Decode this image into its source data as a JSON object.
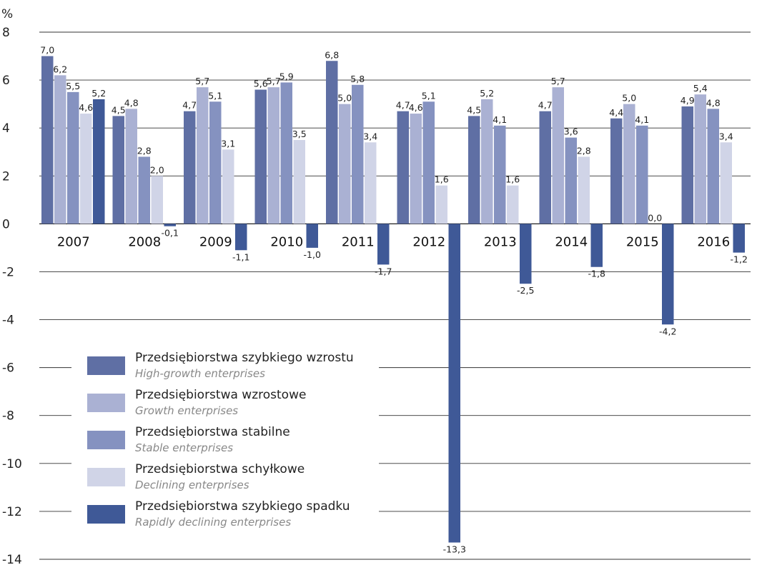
{
  "chart_data": {
    "type": "bar",
    "unit_label": "%",
    "categories": [
      "2007",
      "2008",
      "2009",
      "2010",
      "2011",
      "2012",
      "2013",
      "2014",
      "2015",
      "2016"
    ],
    "ylim": [
      -14,
      8
    ],
    "yticks": [
      8,
      6,
      4,
      2,
      0,
      -2,
      -4,
      -6,
      -8,
      -10,
      -12,
      -14
    ],
    "ytick_labels": [
      "8",
      "6",
      "4",
      "2",
      "0",
      "-2",
      "-4",
      "-6",
      "-8",
      "-10",
      "-12",
      "-14"
    ],
    "grid": true,
    "legend_position": "bottom-left",
    "series": [
      {
        "name": "Przedsiębiorstwa szybkiego wzrostu",
        "name_en": "High-growth enterprises",
        "color": "#5f6fa4",
        "values": [
          7.0,
          4.5,
          4.7,
          5.6,
          6.8,
          4.7,
          4.5,
          4.7,
          4.4,
          4.9
        ],
        "labels": [
          "7,0",
          "4,5",
          "4,7",
          "5,6",
          "6,8",
          "4,7",
          "4,5",
          "4,7",
          "4,4",
          "4,9"
        ]
      },
      {
        "name": "Przedsiębiorstwa wzrostowe",
        "name_en": "Growth enterprises",
        "color": "#aab1d3",
        "values": [
          6.2,
          4.8,
          5.7,
          5.7,
          5.0,
          4.6,
          5.2,
          5.7,
          5.0,
          5.4
        ],
        "labels": [
          "6,2",
          "4,8",
          "5,7",
          "5,7",
          "5,0",
          "4,6",
          "5,2",
          "5,7",
          "5,0",
          "5,4"
        ]
      },
      {
        "name": "Przedsiębiorstwa stabilne",
        "name_en": "Stable enterprises",
        "color": "#8592c0",
        "values": [
          5.5,
          2.8,
          5.1,
          5.9,
          5.8,
          5.1,
          4.1,
          3.6,
          4.1,
          4.8
        ],
        "labels": [
          "5,5",
          "2,8",
          "5,1",
          "5,9",
          "5,8",
          "5,1",
          "4,1",
          "3,6",
          "4,1",
          "4,8"
        ]
      },
      {
        "name": "Przedsiębiorstwa schyłkowe",
        "name_en": "Declining enterprises",
        "color": "#d0d4e7",
        "values": [
          4.6,
          2.0,
          3.1,
          3.5,
          3.4,
          1.6,
          1.6,
          2.8,
          0.0,
          3.4
        ],
        "labels": [
          "4,6",
          "2,0",
          "3,1",
          "3,5",
          "3,4",
          "1,6",
          "1,6",
          "2,8",
          "0,0",
          "3,4"
        ]
      },
      {
        "name": "Przedsiębiorstwa szybkiego spadku",
        "name_en": "Rapidly declining enterprises",
        "color": "#3f5997",
        "values": [
          5.2,
          -0.1,
          -1.1,
          -1.0,
          -1.7,
          -13.3,
          -2.5,
          -1.8,
          -4.2,
          -1.2
        ],
        "labels": [
          "5,2",
          "-0,1",
          "-1,1",
          "-1,0",
          "-1,7",
          "-13,3",
          "-2,5",
          "-1,8",
          "-4,2",
          "-1,2"
        ]
      }
    ]
  }
}
